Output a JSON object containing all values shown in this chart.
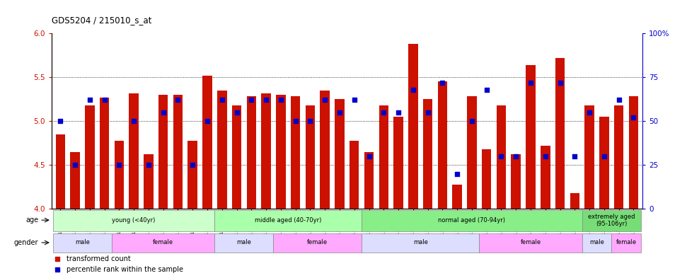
{
  "title": "GDS5204 / 215010_s_at",
  "samples": [
    "GSM1303144",
    "GSM1303147",
    "GSM1303148",
    "GSM1303151",
    "GSM1303155",
    "GSM1303145",
    "GSM1303146",
    "GSM1303149",
    "GSM1303150",
    "GSM1303152",
    "GSM1303153",
    "GSM1303154",
    "GSM1303156",
    "GSM1303159",
    "GSM1303161",
    "GSM1303162",
    "GSM1303164",
    "GSM1303157",
    "GSM1303158",
    "GSM1303160",
    "GSM1303163",
    "GSM1303165",
    "GSM1303167",
    "GSM1303169",
    "GSM1303170",
    "GSM1303172",
    "GSM1303174",
    "GSM1303175",
    "GSM1303177",
    "GSM1303166",
    "GSM1303168",
    "GSM1303171",
    "GSM1303173",
    "GSM1303176",
    "GSM1303179",
    "GSM1303180",
    "GSM1303182",
    "GSM1303181",
    "GSM1303183",
    "GSM1303184"
  ],
  "bar_values": [
    4.85,
    4.65,
    5.18,
    5.27,
    4.78,
    5.32,
    4.62,
    5.3,
    5.3,
    4.78,
    5.52,
    5.35,
    5.18,
    5.28,
    5.32,
    5.3,
    5.28,
    5.18,
    5.35,
    5.25,
    4.78,
    4.65,
    5.18,
    5.05,
    5.88,
    5.25,
    5.45,
    4.28,
    5.28,
    4.68,
    5.18,
    4.62,
    5.64,
    4.72,
    5.72,
    4.18,
    5.18,
    5.05,
    5.18,
    5.28
  ],
  "dot_values": [
    50,
    25,
    62,
    62,
    25,
    50,
    25,
    55,
    62,
    25,
    50,
    62,
    55,
    62,
    62,
    62,
    50,
    50,
    62,
    55,
    62,
    30,
    55,
    55,
    68,
    55,
    72,
    20,
    50,
    68,
    30,
    30,
    72,
    30,
    72,
    30,
    55,
    30,
    62,
    52
  ],
  "ylim_left": [
    4.0,
    6.0
  ],
  "ylim_right": [
    0,
    100
  ],
  "yticks_left": [
    4.0,
    4.5,
    5.0,
    5.5,
    6.0
  ],
  "yticks_right": [
    0,
    25,
    50,
    75,
    100
  ],
  "bar_color": "#CC1100",
  "dot_color": "#0000CC",
  "bar_bottom": 4.0,
  "age_groups": [
    {
      "label": "young (<40yr)",
      "start": 0,
      "end": 11,
      "color": "#ccffcc"
    },
    {
      "label": "middle aged (40-70yr)",
      "start": 11,
      "end": 21,
      "color": "#aaffaa"
    },
    {
      "label": "normal aged (70-94yr)",
      "start": 21,
      "end": 36,
      "color": "#88ee88"
    },
    {
      "label": "extremely aged\n(95-106yr)",
      "start": 36,
      "end": 40,
      "color": "#77dd77"
    }
  ],
  "gender_groups": [
    {
      "label": "male",
      "start": 0,
      "end": 4,
      "color": "#ddddff"
    },
    {
      "label": "female",
      "start": 4,
      "end": 11,
      "color": "#ffaaff"
    },
    {
      "label": "male",
      "start": 11,
      "end": 15,
      "color": "#ddddff"
    },
    {
      "label": "female",
      "start": 15,
      "end": 21,
      "color": "#ffaaff"
    },
    {
      "label": "male",
      "start": 21,
      "end": 29,
      "color": "#ddddff"
    },
    {
      "label": "female",
      "start": 29,
      "end": 36,
      "color": "#ffaaff"
    },
    {
      "label": "male",
      "start": 36,
      "end": 38,
      "color": "#ddddff"
    },
    {
      "label": "female",
      "start": 38,
      "end": 40,
      "color": "#ffaaff"
    }
  ]
}
